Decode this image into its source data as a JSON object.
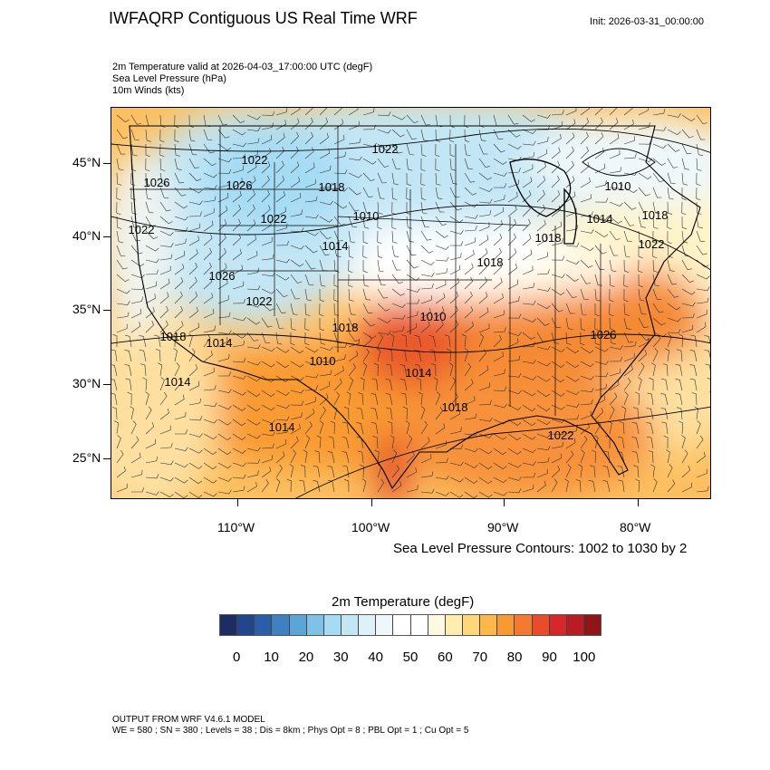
{
  "header": {
    "title": "IWFAQRP Contiguous US Real Time WRF",
    "init": "Init: 2026-03-31_00:00:00"
  },
  "subtitles": [
    "2m Temperature valid at 2026-04-03_17:00:00 UTC   (degF)",
    "Sea Level Pressure   (hPa)",
    "10m Winds   (kts)"
  ],
  "map": {
    "lat_labels": [
      "45°N",
      "40°N",
      "35°N",
      "30°N",
      "25°N"
    ],
    "lon_labels": [
      "110°W",
      "100°W",
      "90°W",
      "80°W"
    ],
    "contour_labels": [
      "1022",
      "1022",
      "1026",
      "1026",
      "1018",
      "1010",
      "1010",
      "1014",
      "1018",
      "1022",
      "1022",
      "1014",
      "1018",
      "1022",
      "1018",
      "1026",
      "1022",
      "1010",
      "1018",
      "1026",
      "1018",
      "1014",
      "1010",
      "1014",
      "1014",
      "1018",
      "1022",
      "1014"
    ],
    "contour_note": "Sea Level Pressure Contours: 1002 to 1030 by 2"
  },
  "colorbar": {
    "title": "2m Temperature  (degF)",
    "labels": [
      "0",
      "10",
      "20",
      "30",
      "40",
      "50",
      "60",
      "70",
      "80",
      "90",
      "100"
    ],
    "colors": [
      "#1d2d63",
      "#21468c",
      "#2a5eaa",
      "#3f80c0",
      "#5ba5d8",
      "#7fc2e6",
      "#a5dcf4",
      "#c3e6f5",
      "#dff1f8",
      "#eef8fb",
      "#ffffff",
      "#ffffff",
      "#fff8e3",
      "#fdeeb0",
      "#fdd77a",
      "#fdb849",
      "#f99a31",
      "#f47a2f",
      "#e84c2b",
      "#d8272b",
      "#b81c24",
      "#8f1519"
    ]
  },
  "footer": {
    "line1": "OUTPUT FROM WRF V4.6.1 MODEL",
    "line2": "WE = 580 ; SN = 380 ; Levels = 38 ; Dis = 8km ; Phys Opt = 8 ; PBL Opt = 1 ; Cu Opt = 5"
  }
}
